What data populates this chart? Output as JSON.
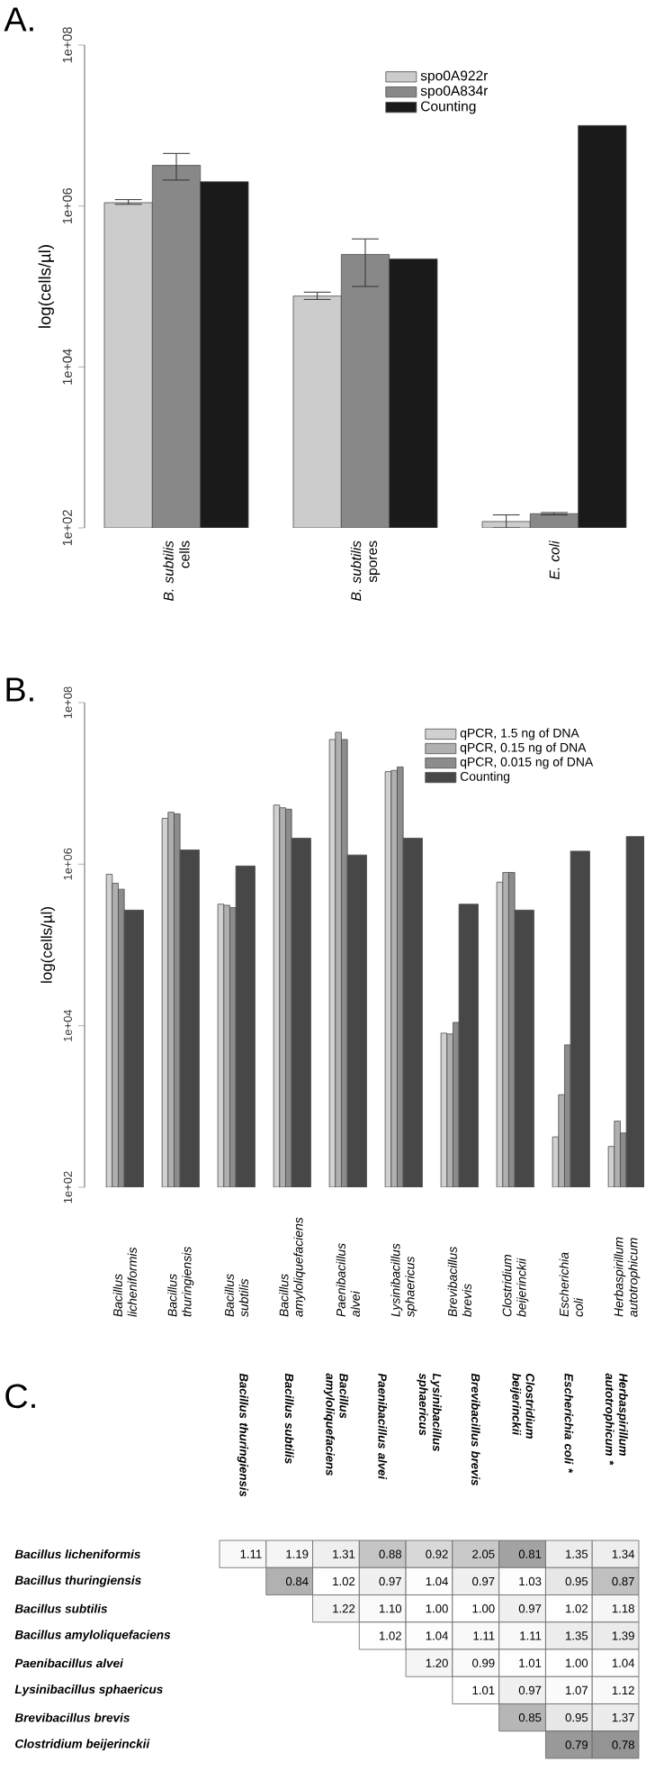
{
  "chart_data": [
    {
      "type": "bar",
      "title": "A.",
      "ylabel": "log(cells/µl)",
      "categories": [
        "*B. subtilis* cells",
        "*B. subtilis* spores",
        "*E. coli*"
      ],
      "log": "y",
      "ylim": [
        100,
        100000000
      ],
      "yticks": [
        {
          "value": 100,
          "label": "1e+02"
        },
        {
          "value": 10000,
          "label": "1e+04"
        },
        {
          "value": 1000000,
          "label": "1e+06"
        },
        {
          "value": 100000000,
          "label": "1e+08"
        }
      ],
      "legend": "top right",
      "series": [
        {
          "name": "spo0A922r",
          "color": "#cccccc",
          "values": [
            1100000,
            76000,
            120
          ],
          "errors": [
            [
              1050000,
              1200000
            ],
            [
              69000,
              85000
            ],
            [
              100,
              145
            ]
          ]
        },
        {
          "name": "spo0A834r",
          "color": "#888888",
          "values": [
            3200000,
            250000,
            150
          ],
          "errors": [
            [
              2100000,
              4500000
            ],
            [
              100000,
              390000
            ],
            [
              145,
              155
            ]
          ]
        },
        {
          "name": "Counting",
          "color": "#1a1a1a",
          "values": [
            2000000,
            220000,
            10000000
          ]
        }
      ]
    },
    {
      "type": "bar",
      "title": "B.",
      "ylabel": "log(cells/µl)",
      "categories": [
        "Bacillus licheniformis",
        "Bacillus thuringiensis",
        "Bacillus subtilis",
        "Bacillus amyloliquefaciens",
        "Paenibacillus alvei",
        "Lysinibacillus sphaericus",
        "Brevibacillus brevis",
        "Clostridium beijerinckii",
        "Escherichia coli",
        "Herbaspirillum autotrophicum"
      ],
      "log": "y",
      "ylim": [
        100,
        100000000
      ],
      "yticks": [
        {
          "value": 100,
          "label": "1e+02"
        },
        {
          "value": 10000,
          "label": "1e+04"
        },
        {
          "value": 1000000,
          "label": "1e+06"
        },
        {
          "value": 100000000,
          "label": "1e+08"
        }
      ],
      "legend": "top right",
      "series": [
        {
          "name": "qPCR, 1.5 ng of DNA",
          "color": "#d0d0d0",
          "values": [
            750000,
            3700000,
            320000,
            5400000,
            35000000,
            14000000,
            8100,
            600000,
            420,
            320
          ]
        },
        {
          "name": "qPCR, 0.15 ng of DNA",
          "color": "#b0b0b0",
          "values": [
            580000,
            4400000,
            310000,
            5000000,
            43000000,
            14500000,
            7900,
            790000,
            1400,
            660
          ]
        },
        {
          "name": "qPCR, 0.015 ng of DNA",
          "color": "#8c8c8c",
          "values": [
            490000,
            4200000,
            290000,
            4800000,
            35000000,
            16000000,
            11000,
            790000,
            5800,
            470
          ]
        },
        {
          "name": "Counting",
          "color": "#474747",
          "values": [
            270000,
            1500000,
            950000,
            2100000,
            1300000,
            2100000,
            320000,
            270000,
            1450000,
            2200000
          ]
        }
      ]
    },
    {
      "type": "heatmap",
      "title": "C.",
      "data_labels": true,
      "cell_labels": [
        [
          "1.11",
          "1.19",
          "1.31",
          "0.88",
          "0.92",
          "2.05",
          "0.81",
          "1.35",
          "1.34"
        ],
        [
          null,
          "0.84",
          "1.02",
          "0.97",
          "1.04",
          "0.97",
          "1.03",
          "0.95",
          "0.87"
        ],
        [
          null,
          null,
          "1.22",
          "1.10",
          "1.00",
          "1.00",
          "0.97",
          "1.02",
          "1.18"
        ],
        [
          null,
          null,
          null,
          "1.02",
          "1.04",
          "1.11",
          "1.11",
          "1.35",
          "1.39"
        ],
        [
          null,
          null,
          null,
          null,
          "1.20",
          "0.99",
          "1.01",
          "1.00",
          "1.04"
        ],
        [
          null,
          null,
          null,
          null,
          null,
          "1.01",
          "0.97",
          "1.07",
          "1.12"
        ],
        [
          null,
          null,
          null,
          null,
          null,
          null,
          "0.85",
          "0.95",
          "1.37"
        ],
        [
          null,
          null,
          null,
          null,
          null,
          null,
          null,
          "0.79",
          "0.78"
        ]
      ],
      "categories": [
        "Bacillus thuringiensis",
        "Bacillus subtilis",
        "Bacillus amyloliquefaciens",
        "Paenibacillus alvei",
        "Lysinibacillus sphaericus",
        "Brevibacillus brevis",
        "Clostridium beijerinckii",
        "Escherichia coli *",
        "Herbaspirillum autotrophicum *"
      ],
      "y_categories": [
        "Bacillus licheniformis",
        "Bacillus thuringiensis",
        "Bacillus subtilis",
        "Bacillus amyloliquefaciens",
        "Paenibacillus alvei",
        "Lysinibacillus sphaericus",
        "Brevibacillus brevis",
        "Clostridium beijerinckii"
      ],
      "cells": [
        [
          1.11,
          1.19,
          1.31,
          0.88,
          0.92,
          2.05,
          0.81,
          1.35,
          1.34
        ],
        [
          null,
          0.84,
          1.02,
          0.97,
          1.04,
          0.97,
          1.03,
          0.95,
          0.87
        ],
        [
          null,
          null,
          1.22,
          1.1,
          1.0,
          1.0,
          0.97,
          1.02,
          1.18
        ],
        [
          null,
          null,
          null,
          1.02,
          1.04,
          1.11,
          1.11,
          1.35,
          1.39
        ],
        [
          null,
          null,
          null,
          null,
          1.2,
          0.99,
          1.01,
          1.0,
          1.04
        ],
        [
          null,
          null,
          null,
          null,
          null,
          1.01,
          0.97,
          1.07,
          1.12
        ],
        [
          null,
          null,
          null,
          null,
          null,
          null,
          0.85,
          0.95,
          1.37
        ],
        [
          null,
          null,
          null,
          null,
          null,
          null,
          null,
          0.79,
          0.78
        ]
      ]
    }
  ]
}
